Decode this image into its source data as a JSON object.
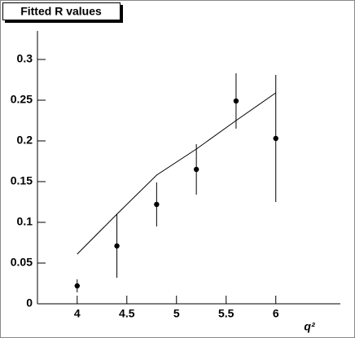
{
  "chart_data": {
    "type": "scatter",
    "title": "Fitted R values",
    "x_label": "q²",
    "xlim": [
      3.6,
      6.65
    ],
    "ylim": [
      0,
      0.335
    ],
    "xticks": [
      4,
      4.5,
      5,
      5.5,
      6
    ],
    "yticks": [
      0,
      0.05,
      0.1,
      0.15,
      0.2,
      0.25,
      0.3
    ],
    "points": {
      "color": "#000000",
      "x": [
        4.0,
        4.4,
        4.8,
        5.2,
        5.6,
        6.0
      ],
      "values": [
        0.022,
        0.071,
        0.122,
        0.165,
        0.249,
        0.203
      ],
      "errors": [
        0.008,
        0.039,
        0.027,
        0.031,
        0.034,
        0.078
      ]
    },
    "fit": {
      "color": "#000000",
      "x": [
        4.0,
        4.4,
        4.8,
        5.2,
        5.6,
        6.0
      ],
      "values": [
        0.061,
        0.11,
        0.158,
        0.19,
        0.225,
        0.259
      ]
    }
  }
}
